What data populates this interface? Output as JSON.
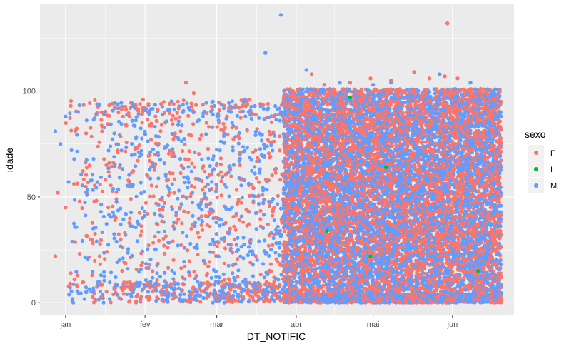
{
  "chart_data": {
    "type": "scatter",
    "xlabel": "DT_NOTIFIC",
    "ylabel": "idade",
    "x_ticks": [
      "jan",
      "fev",
      "mar",
      "abr",
      "mai",
      "jun"
    ],
    "x_tick_dates": [
      "2021-01-01",
      "2021-02-01",
      "2021-03-01",
      "2021-04-01",
      "2021-05-01",
      "2021-06-01"
    ],
    "xlim": [
      "2020-12-22",
      "2021-06-25"
    ],
    "y_ticks": [
      0,
      50,
      100
    ],
    "ylim": [
      -6,
      141
    ],
    "grid": true,
    "legend": {
      "title": "sexo",
      "position": "right"
    },
    "series": [
      {
        "name": "F",
        "color": "#F8766D",
        "points": [
          [
            "2020-12-28",
            22
          ],
          [
            "2020-12-29",
            52
          ],
          [
            "2021-01-01",
            45
          ],
          [
            "2021-01-03",
            93
          ],
          [
            "2021-01-09",
            80
          ],
          [
            "2021-01-15",
            90
          ],
          [
            "2021-01-18",
            66
          ],
          [
            "2021-01-26",
            88
          ],
          [
            "2021-02-02",
            60
          ],
          [
            "2021-02-05",
            70
          ],
          [
            "2021-02-10",
            58
          ],
          [
            "2021-02-17",
            104
          ],
          [
            "2021-02-20",
            99
          ],
          [
            "2021-02-25",
            85
          ],
          [
            "2021-03-01",
            40
          ],
          [
            "2021-03-05",
            88
          ],
          [
            "2021-04-07",
            108
          ],
          [
            "2021-04-12",
            103
          ],
          [
            "2021-04-22",
            104
          ],
          [
            "2021-04-30",
            106
          ],
          [
            "2021-05-08",
            105
          ],
          [
            "2021-05-17",
            109
          ],
          [
            "2021-05-23",
            106
          ],
          [
            "2021-05-29",
            107
          ],
          [
            "2021-06-03",
            106
          ],
          [
            "2021-05-30",
            132
          ],
          [
            "2021-06-12",
            101
          ],
          [
            "2021-06-14",
            100
          ]
        ]
      },
      {
        "name": "I",
        "color": "#00BA38",
        "points": [
          [
            "2021-04-13",
            34
          ],
          [
            "2021-04-22",
            97
          ],
          [
            "2021-04-30",
            22
          ],
          [
            "2021-05-06",
            64
          ],
          [
            "2021-06-11",
            15
          ]
        ]
      },
      {
        "name": "M",
        "color": "#619CFF",
        "points": [
          [
            "2020-12-28",
            81
          ],
          [
            "2020-12-30",
            75
          ],
          [
            "2021-01-01",
            88
          ],
          [
            "2021-01-13",
            89
          ],
          [
            "2021-01-16",
            89
          ],
          [
            "2021-01-20",
            80
          ],
          [
            "2021-01-27",
            86
          ],
          [
            "2021-02-01",
            91
          ],
          [
            "2021-02-18",
            92
          ],
          [
            "2021-02-28",
            93
          ],
          [
            "2021-03-07",
            85
          ],
          [
            "2021-03-12",
            96
          ],
          [
            "2021-03-20",
            118
          ],
          [
            "2021-03-26",
            136
          ],
          [
            "2021-04-05",
            110
          ],
          [
            "2021-04-18",
            104
          ],
          [
            "2021-05-01",
            103
          ],
          [
            "2021-05-08",
            104
          ],
          [
            "2021-05-27",
            108
          ],
          [
            "2021-06-08",
            104
          ]
        ]
      }
    ]
  }
}
